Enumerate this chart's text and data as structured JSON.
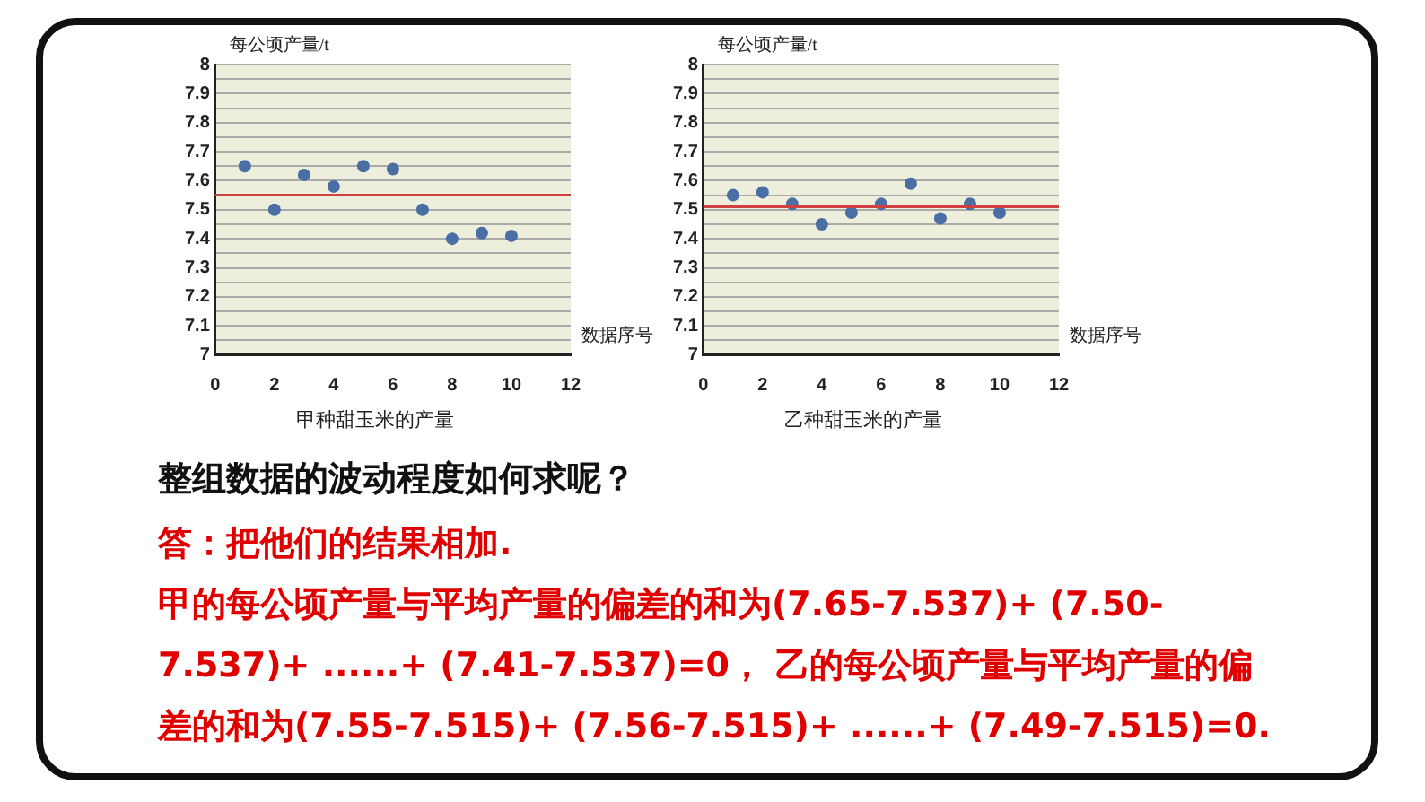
{
  "chart_data": [
    {
      "type": "scatter",
      "title": "甲种甜玉米的产量",
      "xlabel": "数据序号",
      "ylabel": "每公顷产量/t",
      "x": [
        1,
        2,
        3,
        4,
        5,
        6,
        7,
        8,
        9,
        10
      ],
      "series": [
        {
          "color": "#4a6fa5",
          "values": [
            7.65,
            7.5,
            7.62,
            7.58,
            7.65,
            7.64,
            7.5,
            7.4,
            7.42,
            7.41
          ]
        }
      ],
      "xlim": [
        0,
        12
      ],
      "xticks": [
        0,
        2,
        4,
        6,
        8,
        10,
        12
      ],
      "ylim": [
        7,
        8
      ],
      "yticks": [
        7,
        {
          "value": 7.05,
          "label": null
        },
        7.1,
        {
          "value": 7.15,
          "label": null
        },
        7.2,
        {
          "value": 7.25,
          "label": null
        },
        7.3,
        {
          "value": 7.35,
          "label": null
        },
        7.4,
        {
          "value": 7.45,
          "label": null
        },
        7.5,
        {
          "value": 7.55,
          "label": null
        },
        7.6,
        {
          "value": 7.65,
          "label": null
        },
        7.7,
        {
          "value": 7.75,
          "label": null
        },
        7.8,
        {
          "value": 7.85,
          "label": null
        },
        7.9,
        {
          "value": 7.95,
          "label": null
        },
        8
      ],
      "ref_lines": [
        {
          "axis": "y",
          "value": 7.55,
          "color": "#d04040"
        }
      ],
      "grid": "y",
      "marker": "circle",
      "legend": false
    },
    {
      "type": "scatter",
      "title": "乙种甜玉米的产量",
      "xlabel": "数据序号",
      "ylabel": "每公顷产量/t",
      "x": [
        1,
        2,
        3,
        4,
        5,
        6,
        7,
        8,
        9,
        10
      ],
      "series": [
        {
          "color": "#4a6fa5",
          "values": [
            7.55,
            7.56,
            7.52,
            7.45,
            7.49,
            7.52,
            7.59,
            7.47,
            7.52,
            7.49
          ]
        }
      ],
      "xlim": [
        0,
        12
      ],
      "xticks": [
        0,
        2,
        4,
        6,
        8,
        10,
        12
      ],
      "ylim": [
        7,
        8
      ],
      "yticks": [
        7,
        {
          "value": 7.05,
          "label": null
        },
        7.1,
        {
          "value": 7.15,
          "label": null
        },
        7.2,
        {
          "value": 7.25,
          "label": null
        },
        7.3,
        {
          "value": 7.35,
          "label": null
        },
        7.4,
        {
          "value": 7.45,
          "label": null
        },
        7.5,
        {
          "value": 7.55,
          "label": null
        },
        7.6,
        {
          "value": 7.65,
          "label": null
        },
        7.7,
        {
          "value": 7.75,
          "label": null
        },
        7.8,
        {
          "value": 7.85,
          "label": null
        },
        7.9,
        {
          "value": 7.95,
          "label": null
        },
        8
      ],
      "ref_lines": [
        {
          "axis": "y",
          "value": 7.51,
          "color": "#d04040"
        }
      ],
      "grid": "y",
      "marker": "circle",
      "legend": false
    },
    {
      "type": "other",
      "annotations": [
        "整组数据的波动程度如何求呢？",
        "答：把他们的结果相加.",
        "甲的每公顷产量与平均产量的偏差的和为(7.65-7.537)+ (7.50-7.537)+ ......+ (7.41-7.537)=0， 乙的每公顷产量与平均产量的偏差的和为(7.55-7.515)+ (7.56-7.515)+ ......+ (7.49-7.515)=0."
      ]
    }
  ]
}
